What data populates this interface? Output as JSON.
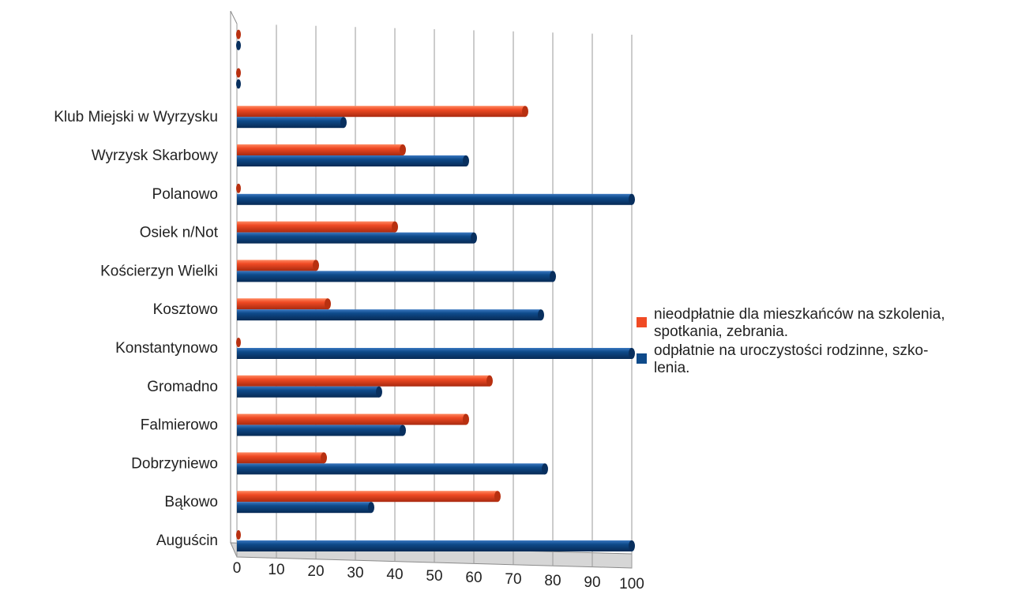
{
  "chart_data": {
    "type": "bar",
    "orientation": "horizontal",
    "style": "3d-cylinder",
    "categories": [
      "Auguścin",
      "Bąkowo",
      "Dobrzyniewo",
      "Falmierowo",
      "Gromadno",
      "Konstantynowo",
      "Kosztowo",
      "Kościerzyn Wielki",
      "Osiek n/Not",
      "Polanowo",
      "Wyrzysk Skarbowy",
      "Klub Miejski w Wyrzysku",
      "",
      ""
    ],
    "series": [
      {
        "name": "nieodpłatnie dla mieszkańców na szkolenia, spotkania, zebrania.",
        "color": "#f04a24",
        "values": [
          0,
          66,
          22,
          58,
          64,
          0,
          23,
          20,
          40,
          0,
          42,
          73,
          0,
          0
        ]
      },
      {
        "name": "odpłatnie na uroczystości rodzinne, szkolenia.",
        "color": "#0e4a8a",
        "values": [
          100,
          34,
          78,
          42,
          36,
          100,
          77,
          80,
          60,
          100,
          58,
          27,
          0,
          0
        ]
      }
    ],
    "xlim": [
      0,
      100
    ],
    "xticks": [
      0,
      10,
      20,
      30,
      40,
      50,
      60,
      70,
      80,
      90,
      100
    ],
    "grid": true,
    "legend_position": "right"
  },
  "legend": {
    "items": [
      {
        "lines": [
          "nieodpłatnie dla mieszkańców na szkolenia,",
          "spotkania, zebrania."
        ],
        "color": "#f04a24"
      },
      {
        "lines": [
          "odpłatnie na uroczystości rodzinne, szko-",
          "lenia."
        ],
        "color": "#0e4a8a"
      }
    ]
  }
}
